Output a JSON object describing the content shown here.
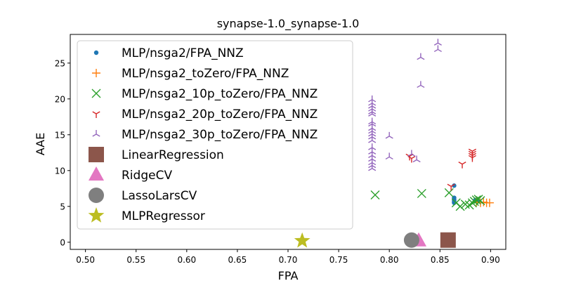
{
  "chart_data": {
    "type": "scatter",
    "title": "synapse-1.0_synapse-1.0",
    "xlabel": "FPA",
    "ylabel": "AAE",
    "xlim": [
      0.485,
      0.915
    ],
    "ylim": [
      -1.0,
      29.0
    ],
    "xticks": [
      0.5,
      0.55,
      0.6,
      0.65,
      0.7,
      0.75,
      0.8,
      0.85,
      0.9
    ],
    "xtick_labels": [
      "0.50",
      "0.55",
      "0.60",
      "0.65",
      "0.70",
      "0.75",
      "0.80",
      "0.85",
      "0.90"
    ],
    "yticks": [
      0,
      5,
      10,
      15,
      20,
      25
    ],
    "ytick_labels": [
      "0",
      "5",
      "10",
      "15",
      "20",
      "25"
    ],
    "grid": false,
    "legend_position": "upper-left",
    "series": [
      {
        "name": "MLP/nsga2/FPA_NNZ",
        "color": "#1f77b4",
        "marker": "circle",
        "points": [
          [
            0.864,
            7.9
          ],
          [
            0.864,
            6.2
          ],
          [
            0.864,
            6.0
          ],
          [
            0.864,
            5.8
          ],
          [
            0.864,
            5.6
          ],
          [
            0.864,
            5.5
          ],
          [
            0.885,
            5.9
          ],
          [
            0.887,
            5.7
          ]
        ]
      },
      {
        "name": "MLP/nsga2_toZero/FPA_NNZ",
        "color": "#ff7f0e",
        "marker": "plus",
        "points": [
          [
            0.886,
            5.6
          ],
          [
            0.89,
            5.5
          ],
          [
            0.893,
            5.6
          ],
          [
            0.896,
            5.5
          ],
          [
            0.899,
            5.5
          ]
        ]
      },
      {
        "name": "MLP/nsga2_10p_toZero/FPA_NNZ",
        "color": "#2ca02c",
        "marker": "x",
        "points": [
          [
            0.786,
            6.6
          ],
          [
            0.832,
            6.8
          ],
          [
            0.859,
            6.9
          ],
          [
            0.866,
            5.5
          ],
          [
            0.87,
            5.0
          ],
          [
            0.875,
            5.3
          ],
          [
            0.879,
            5.2
          ],
          [
            0.882,
            5.5
          ],
          [
            0.884,
            5.7
          ],
          [
            0.886,
            5.9
          ],
          [
            0.888,
            6.0
          ],
          [
            0.89,
            5.8
          ]
        ]
      },
      {
        "name": "MLP/nsga2_20p_toZero/FPA_NNZ",
        "color": "#d62728",
        "marker": "tri_down",
        "points": [
          [
            0.82,
            12.0
          ],
          [
            0.822,
            11.7
          ],
          [
            0.861,
            7.8
          ],
          [
            0.872,
            10.9
          ],
          [
            0.882,
            11.8
          ],
          [
            0.882,
            12.1
          ],
          [
            0.882,
            12.4
          ],
          [
            0.882,
            12.7
          ]
        ]
      },
      {
        "name": "MLP/nsga2_30p_toZero/FPA_NNZ",
        "color": "#9467bd",
        "marker": "tri_left",
        "points": [
          [
            0.783,
            10.3
          ],
          [
            0.783,
            10.7
          ],
          [
            0.783,
            11.1
          ],
          [
            0.783,
            11.6
          ],
          [
            0.783,
            12.1
          ],
          [
            0.783,
            12.6
          ],
          [
            0.783,
            13.2
          ],
          [
            0.783,
            14.2
          ],
          [
            0.783,
            14.7
          ],
          [
            0.783,
            15.1
          ],
          [
            0.783,
            15.5
          ],
          [
            0.783,
            15.9
          ],
          [
            0.783,
            16.5
          ],
          [
            0.783,
            16.8
          ],
          [
            0.783,
            17.9
          ],
          [
            0.783,
            18.2
          ],
          [
            0.783,
            18.6
          ],
          [
            0.783,
            19.0
          ],
          [
            0.783,
            19.4
          ],
          [
            0.783,
            19.9
          ],
          [
            0.8,
            11.9
          ],
          [
            0.8,
            14.8
          ],
          [
            0.822,
            12.3
          ],
          [
            0.827,
            11.5
          ],
          [
            0.831,
            21.9
          ],
          [
            0.831,
            25.8
          ],
          [
            0.848,
            26.9
          ],
          [
            0.848,
            27.8
          ]
        ]
      },
      {
        "name": "LinearRegression",
        "color": "#8c564b",
        "marker": "square",
        "points": [
          [
            0.858,
            0.3
          ]
        ]
      },
      {
        "name": "RidgeCV",
        "color": "#e377c2",
        "marker": "triangle",
        "points": [
          [
            0.829,
            0.2
          ]
        ]
      },
      {
        "name": "LassoLarsCV",
        "color": "#7f7f7f",
        "marker": "big_circle",
        "points": [
          [
            0.822,
            0.3
          ]
        ]
      },
      {
        "name": "MLPRegressor",
        "color": "#bcbd22",
        "marker": "star",
        "points": [
          [
            0.714,
            0.2
          ]
        ]
      }
    ]
  }
}
